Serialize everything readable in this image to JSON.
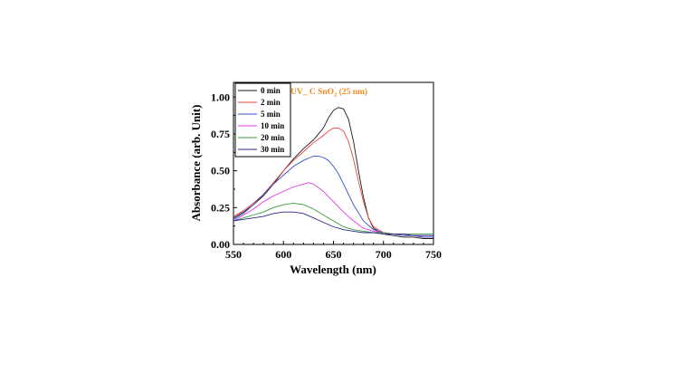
{
  "chart_data": {
    "type": "line",
    "title": "",
    "annotation": {
      "prefix": "UV_ C SnO",
      "subscript": "2",
      "suffix": " (25 nm)",
      "color": "#f08a1c"
    },
    "xlabel": "Wavelength (nm)",
    "ylabel": "Absorbance (arb. Unit)",
    "xlim": [
      550,
      750
    ],
    "ylim": [
      0.0,
      1.1
    ],
    "xticks": [
      550,
      600,
      650,
      700,
      750
    ],
    "xtick_labels": [
      "550",
      "600",
      "650",
      "700",
      "750"
    ],
    "yticks": [
      0.0,
      0.25,
      0.5,
      0.75,
      1.0
    ],
    "ytick_labels": [
      "0.00",
      "0.25",
      "0.50",
      "0.75",
      "1.00"
    ],
    "grid": false,
    "legend_position": "top-left",
    "series": [
      {
        "name": "0 min",
        "color": "#1a1a1a",
        "x": [
          550,
          560,
          570,
          580,
          590,
          600,
          610,
          620,
          630,
          640,
          645,
          650,
          655,
          660,
          665,
          670,
          675,
          680,
          685,
          690,
          700,
          710,
          720,
          730,
          740,
          750
        ],
        "y": [
          0.18,
          0.22,
          0.27,
          0.33,
          0.41,
          0.5,
          0.58,
          0.65,
          0.71,
          0.79,
          0.86,
          0.91,
          0.93,
          0.92,
          0.85,
          0.7,
          0.5,
          0.32,
          0.18,
          0.11,
          0.07,
          0.06,
          0.05,
          0.05,
          0.04,
          0.04
        ]
      },
      {
        "name": "2 min",
        "color": "#e8453c",
        "x": [
          550,
          560,
          570,
          580,
          590,
          600,
          610,
          620,
          630,
          640,
          645,
          650,
          655,
          660,
          665,
          670,
          675,
          680,
          685,
          690,
          700,
          710,
          720,
          730,
          740,
          750
        ],
        "y": [
          0.19,
          0.23,
          0.28,
          0.34,
          0.42,
          0.5,
          0.57,
          0.63,
          0.69,
          0.74,
          0.77,
          0.79,
          0.79,
          0.77,
          0.7,
          0.58,
          0.43,
          0.29,
          0.18,
          0.12,
          0.08,
          0.07,
          0.06,
          0.06,
          0.05,
          0.05
        ]
      },
      {
        "name": "5 min",
        "color": "#3a4fd0",
        "x": [
          550,
          560,
          570,
          580,
          590,
          600,
          610,
          620,
          630,
          635,
          640,
          645,
          650,
          655,
          660,
          670,
          680,
          690,
          700,
          710,
          720,
          730,
          740,
          750
        ],
        "y": [
          0.17,
          0.21,
          0.27,
          0.34,
          0.41,
          0.47,
          0.53,
          0.57,
          0.6,
          0.6,
          0.59,
          0.57,
          0.53,
          0.48,
          0.41,
          0.27,
          0.16,
          0.1,
          0.08,
          0.07,
          0.06,
          0.06,
          0.05,
          0.05
        ]
      },
      {
        "name": "10 min",
        "color": "#e53ae8",
        "x": [
          550,
          560,
          570,
          580,
          590,
          600,
          610,
          620,
          625,
          630,
          640,
          650,
          660,
          670,
          680,
          690,
          700,
          710,
          720,
          730,
          740,
          750
        ],
        "y": [
          0.16,
          0.2,
          0.24,
          0.29,
          0.33,
          0.36,
          0.39,
          0.41,
          0.42,
          0.41,
          0.36,
          0.29,
          0.22,
          0.16,
          0.11,
          0.09,
          0.08,
          0.07,
          0.07,
          0.06,
          0.06,
          0.06
        ]
      },
      {
        "name": "20 min",
        "color": "#3a9a3a",
        "x": [
          550,
          560,
          570,
          580,
          590,
          600,
          610,
          620,
          630,
          640,
          650,
          660,
          670,
          680,
          690,
          700,
          710,
          720,
          730,
          740,
          750
        ],
        "y": [
          0.16,
          0.18,
          0.2,
          0.22,
          0.25,
          0.27,
          0.28,
          0.27,
          0.24,
          0.2,
          0.16,
          0.12,
          0.1,
          0.09,
          0.08,
          0.08,
          0.07,
          0.07,
          0.07,
          0.07,
          0.07
        ]
      },
      {
        "name": "30 min",
        "color": "#2a2a8a",
        "x": [
          550,
          560,
          570,
          580,
          590,
          600,
          610,
          620,
          630,
          640,
          650,
          660,
          670,
          680,
          690,
          700,
          710,
          720,
          730,
          740,
          750
        ],
        "y": [
          0.16,
          0.17,
          0.18,
          0.19,
          0.21,
          0.22,
          0.22,
          0.21,
          0.18,
          0.15,
          0.12,
          0.1,
          0.09,
          0.08,
          0.08,
          0.07,
          0.07,
          0.07,
          0.06,
          0.06,
          0.06
        ]
      }
    ]
  }
}
